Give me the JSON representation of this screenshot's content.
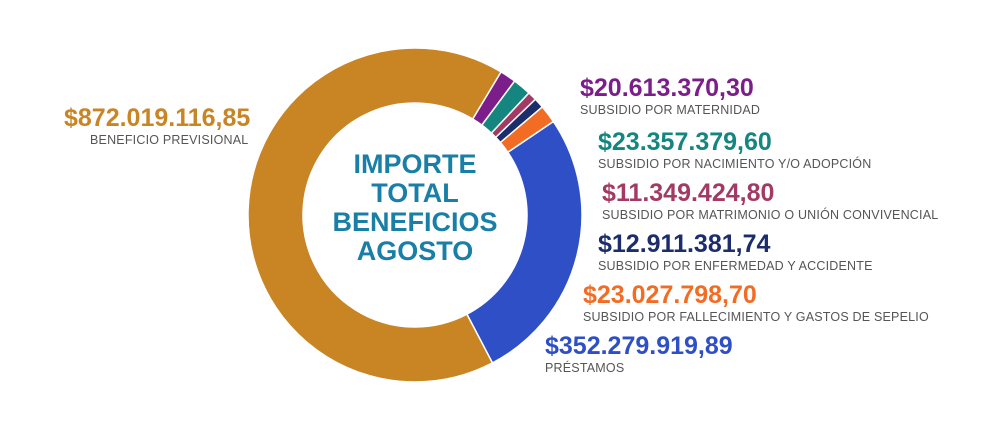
{
  "center_title": [
    "IMPORTE",
    "TOTAL",
    "BENEFICIOS",
    "AGOSTO"
  ],
  "chart_data": {
    "type": "pie",
    "title": "IMPORTE TOTAL BENEFICIOS AGOSTO",
    "slices": [
      {
        "label": "SUBSIDIO POR MATERNIDAD",
        "value": 20613370.3,
        "display": "$20.613.370,30",
        "color": "#7b1e8a"
      },
      {
        "label": "SUBSIDIO POR NACIMIENTO Y/O ADOPCIÓN",
        "value": 23357379.6,
        "display": "$23.357.379,60",
        "color": "#14867f"
      },
      {
        "label": "SUBSIDIO POR MATRIMONIO O UNIÓN CONVIVENCIAL",
        "value": 11349424.8,
        "display": "$11.349.424,80",
        "color": "#a23a64"
      },
      {
        "label": "SUBSIDIO POR ENFERMEDAD Y ACCIDENTE",
        "value": 12911381.74,
        "display": "$12.911.381,74",
        "color": "#1b2e6b"
      },
      {
        "label": "SUBSIDIO POR FALLECIMIENTO Y GASTOS DE SEPELIO",
        "value": 23027798.7,
        "display": "$23.027.798,70",
        "color": "#f26c24"
      },
      {
        "label": "PRÉSTAMOS",
        "value": 352279919.89,
        "display": "$352.279.919,89",
        "color": "#2f4fc7"
      },
      {
        "label": "BENEFICIO PREVISIONAL",
        "value": 872019116.85,
        "display": "$872.019.116,85",
        "color": "#c98424"
      }
    ]
  }
}
